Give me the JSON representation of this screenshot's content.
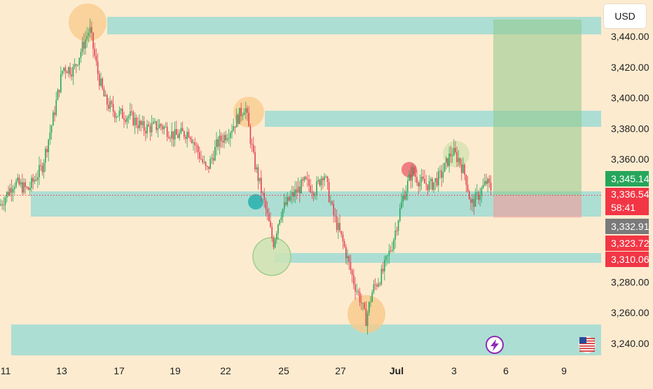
{
  "chart_data": {
    "type": "candlestick",
    "currency": "USD",
    "y_ticks": [
      "3,440.00",
      "3,420.00",
      "3,400.00",
      "3,380.00",
      "3,360.00",
      "3,280.00",
      "3,260.00",
      "3,240.00"
    ],
    "y_tick_values": [
      3440,
      3420,
      3400,
      3380,
      3360,
      3280,
      3260,
      3240
    ],
    "ylim": [
      3228,
      3462
    ],
    "x_ticks": [
      "11",
      "13",
      "17",
      "19",
      "22",
      "25",
      "27",
      "Jul",
      "3",
      "6",
      "9"
    ],
    "price_labels": [
      {
        "text": "3,345.14",
        "value": 3345.14,
        "color": "#26A65B"
      },
      {
        "text": "3,336.54",
        "value": 3336.54,
        "color": "#F23645"
      },
      {
        "text": "58:41",
        "value": 3331.2,
        "color": "#F23645"
      },
      {
        "text": "3,332.91",
        "value": 3332.91,
        "color": "#7A7A7A"
      },
      {
        "text": "3,323.72",
        "value": 3323.72,
        "color": "#F23645"
      },
      {
        "text": "3,310.06",
        "value": 3310.06,
        "color": "#F23645"
      }
    ],
    "zones": [
      {
        "name": "resistance-zone-top",
        "y1": 3446,
        "y2": 3451
      },
      {
        "name": "resistance-zone-mid",
        "y1": 3383,
        "y2": 3389
      },
      {
        "name": "support-zone-main",
        "y1": 3331,
        "y2": 3341
      },
      {
        "name": "support-zone-low",
        "y1": 3306,
        "y2": 3309
      },
      {
        "name": "support-zone-bottom",
        "y1": 3234,
        "y2": 3252
      }
    ],
    "trade": {
      "entry": 3336.5,
      "target": 3451,
      "stop": 3322
    },
    "current_price": 3336.54,
    "icons": {
      "lightning": "lightning-icon",
      "flag": "us-flag-icon"
    },
    "colors": {
      "up": "#26A65B",
      "down": "#E0414F",
      "zone": "#A9DDD3",
      "profit": "#B8DBA4",
      "loss": "#F7B4B2"
    }
  }
}
